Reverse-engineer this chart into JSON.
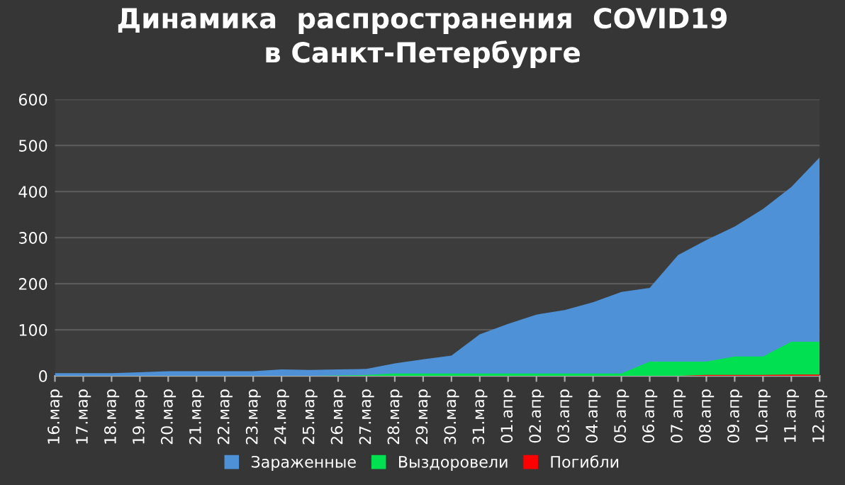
{
  "chart_data": {
    "type": "area",
    "title": "Динамика  распространения  COVID19\nв Санкт-Петербурге",
    "categories": [
      "16.мар",
      "17.мар",
      "18.мар",
      "19.мар",
      "20.мар",
      "21.мар",
      "22.мар",
      "23.мар",
      "24.мар",
      "25.мар",
      "26.мар",
      "27.мар",
      "28.мар",
      "29.мар",
      "30.мар",
      "31.мар",
      "01.апр",
      "02.апр",
      "03.апр",
      "04.апр",
      "05.апр",
      "06.апр",
      "07.апр",
      "08.апр",
      "09.апр",
      "10.апр",
      "11.апр",
      "12.апр"
    ],
    "series": [
      {
        "name": "Зараженные",
        "color": "#4f91d6",
        "values": [
          6,
          6,
          6,
          8,
          10,
          10,
          10,
          10,
          14,
          13,
          14,
          15,
          27,
          36,
          44,
          90,
          113,
          133,
          143,
          160,
          182,
          191,
          262,
          295,
          324,
          362,
          410,
          474
        ]
      },
      {
        "name": "Выздоровели",
        "color": "#00e050",
        "values": [
          0,
          0,
          0,
          0,
          0,
          0,
          0,
          0,
          0,
          0,
          1,
          2,
          5,
          5,
          5,
          5,
          5,
          5,
          5,
          5,
          5,
          31,
          31,
          31,
          42,
          42,
          74,
          74
        ]
      },
      {
        "name": "Погибли",
        "color": "#ff0000",
        "values": [
          0,
          0,
          0,
          0,
          0,
          0,
          0,
          0,
          0,
          0,
          0,
          0,
          0,
          0,
          0,
          0,
          0,
          0,
          0,
          0,
          0,
          0,
          0,
          2,
          2,
          2,
          3,
          3
        ]
      }
    ],
    "ylim": [
      0,
      600
    ],
    "yticks": [
      0,
      100,
      200,
      300,
      400,
      500,
      600
    ],
    "grid": "y",
    "legend": "bottom"
  }
}
